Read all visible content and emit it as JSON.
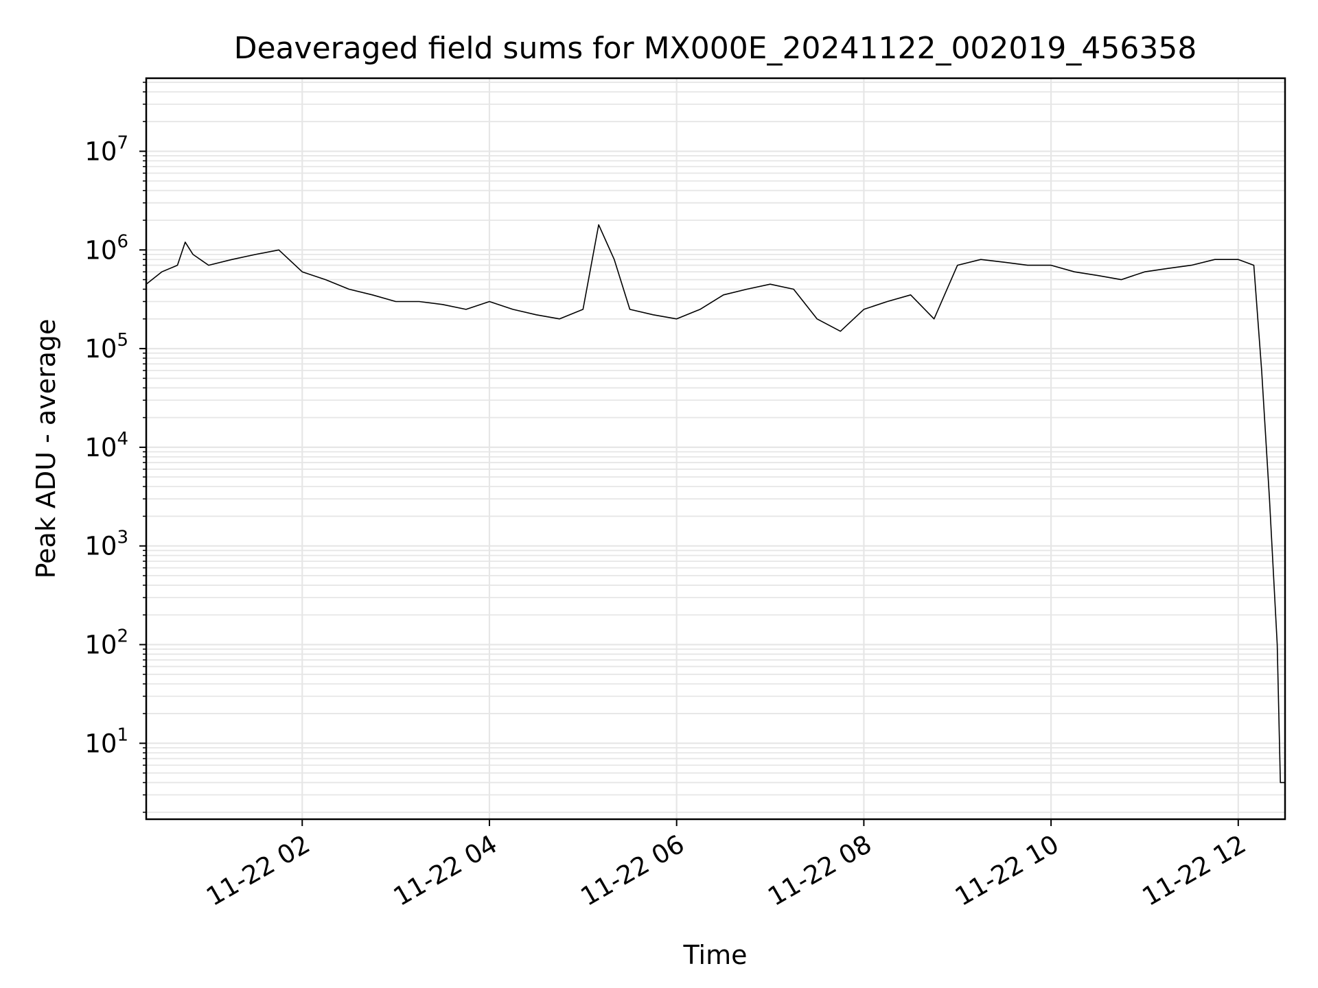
{
  "chart_data": {
    "type": "line",
    "title": "Deaveraged field sums for MX000E_20241122_002019_456358",
    "xlabel": "Time",
    "ylabel": "Peak ADU - average",
    "yscale": "log",
    "ylim": [
      1.7,
      55000000
    ],
    "xlim": [
      "2024-11-22 00:20",
      "2024-11-22 12:30"
    ],
    "grid": true,
    "line_color": "#000000",
    "grid_color": "#e6e6e6",
    "x_ticks": [
      {
        "value": "2024-11-22 02:00",
        "label": "11-22 02"
      },
      {
        "value": "2024-11-22 04:00",
        "label": "11-22 04"
      },
      {
        "value": "2024-11-22 06:00",
        "label": "11-22 06"
      },
      {
        "value": "2024-11-22 08:00",
        "label": "11-22 08"
      },
      {
        "value": "2024-11-22 10:00",
        "label": "11-22 10"
      },
      {
        "value": "2024-11-22 12:00",
        "label": "11-22 12"
      }
    ],
    "y_ticks": [
      {
        "value": 10,
        "base": "10",
        "exp": "1"
      },
      {
        "value": 100,
        "base": "10",
        "exp": "2"
      },
      {
        "value": 1000,
        "base": "10",
        "exp": "3"
      },
      {
        "value": 10000,
        "base": "10",
        "exp": "4"
      },
      {
        "value": 100000,
        "base": "10",
        "exp": "5"
      },
      {
        "value": 1000000,
        "base": "10",
        "exp": "6"
      },
      {
        "value": 10000000,
        "base": "10",
        "exp": "7"
      }
    ],
    "series": [
      {
        "name": "",
        "x": [
          "2024-11-22 00:20",
          "2024-11-22 00:30",
          "2024-11-22 00:40",
          "2024-11-22 00:45",
          "2024-11-22 00:50",
          "2024-11-22 01:00",
          "2024-11-22 01:15",
          "2024-11-22 01:30",
          "2024-11-22 01:45",
          "2024-11-22 02:00",
          "2024-11-22 02:15",
          "2024-11-22 02:30",
          "2024-11-22 02:45",
          "2024-11-22 03:00",
          "2024-11-22 03:15",
          "2024-11-22 03:30",
          "2024-11-22 03:45",
          "2024-11-22 04:00",
          "2024-11-22 04:15",
          "2024-11-22 04:30",
          "2024-11-22 04:45",
          "2024-11-22 05:00",
          "2024-11-22 05:10",
          "2024-11-22 05:20",
          "2024-11-22 05:30",
          "2024-11-22 05:45",
          "2024-11-22 06:00",
          "2024-11-22 06:15",
          "2024-11-22 06:30",
          "2024-11-22 06:45",
          "2024-11-22 07:00",
          "2024-11-22 07:15",
          "2024-11-22 07:30",
          "2024-11-22 07:45",
          "2024-11-22 08:00",
          "2024-11-22 08:15",
          "2024-11-22 08:30",
          "2024-11-22 08:45",
          "2024-11-22 09:00",
          "2024-11-22 09:15",
          "2024-11-22 09:30",
          "2024-11-22 09:45",
          "2024-11-22 10:00",
          "2024-11-22 10:15",
          "2024-11-22 10:30",
          "2024-11-22 10:45",
          "2024-11-22 11:00",
          "2024-11-22 11:15",
          "2024-11-22 11:30",
          "2024-11-22 11:45",
          "2024-11-22 12:00",
          "2024-11-22 12:10",
          "2024-11-22 12:15",
          "2024-11-22 12:20",
          "2024-11-22 12:25",
          "2024-11-22 12:27",
          "2024-11-22 12:30"
        ],
        "y": [
          450000,
          600000,
          700000,
          1200000,
          900000,
          700000,
          800000,
          900000,
          1000000,
          600000,
          500000,
          400000,
          350000,
          300000,
          300000,
          280000,
          250000,
          300000,
          250000,
          220000,
          200000,
          250000,
          1800000,
          800000,
          250000,
          220000,
          200000,
          250000,
          350000,
          400000,
          450000,
          400000,
          200000,
          150000,
          250000,
          300000,
          350000,
          200000,
          700000,
          800000,
          750000,
          700000,
          700000,
          600000,
          550000,
          500000,
          600000,
          650000,
          700000,
          800000,
          800000,
          700000,
          60000,
          3000,
          100,
          4,
          4
        ]
      }
    ]
  }
}
